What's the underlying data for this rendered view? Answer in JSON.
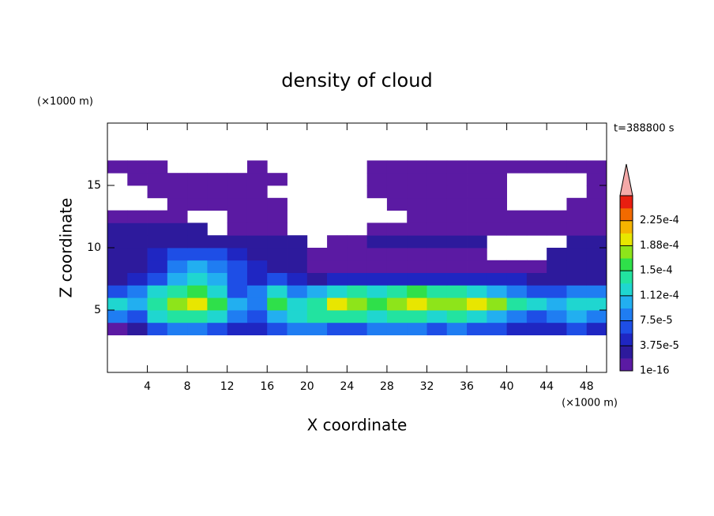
{
  "chart_data": {
    "type": "contour",
    "title": "density of cloud",
    "x_label": "X coordinate",
    "y_label": "Z coordinate",
    "x_unit": "(×1000 m)",
    "y_unit": "(×1000 m)",
    "time_label": "t=388800 s",
    "xlim": [
      0,
      50
    ],
    "ylim": [
      0,
      20
    ],
    "xticks": [
      4,
      8,
      12,
      16,
      20,
      24,
      28,
      32,
      36,
      40,
      44,
      48
    ],
    "yticks": [
      5,
      10,
      15
    ],
    "x": [
      1,
      3,
      5,
      7,
      9,
      11,
      13,
      15,
      17,
      19,
      21,
      23,
      25,
      27,
      29,
      31,
      33,
      35,
      37,
      39,
      41,
      43,
      45,
      47,
      49
    ],
    "y": [
      3.5,
      4.5,
      5.5,
      6.5,
      7.5,
      8.5,
      9.5,
      10.5,
      11.5,
      12.5,
      13.5,
      14.5,
      15.5,
      16.5
    ],
    "values": [
      [
        1e-05,
        2.5e-05,
        6.5e-05,
        8.5e-05,
        8.5e-05,
        6.5e-05,
        4.5e-05,
        4.5e-05,
        6.5e-05,
        8.5e-05,
        8.5e-05,
        6.5e-05,
        6.5e-05,
        8.5e-05,
        8.5e-05,
        8.5e-05,
        6.5e-05,
        8.5e-05,
        6.5e-05,
        6.5e-05,
        4.5e-05,
        4.5e-05,
        4.5e-05,
        6.5e-05,
        4.5e-05
      ],
      [
        8.5e-05,
        6.5e-05,
        0.00012,
        0.00014,
        0.00014,
        0.00012,
        8.5e-05,
        6.5e-05,
        0.0001,
        0.00012,
        0.00014,
        0.00014,
        0.00014,
        0.00012,
        0.00014,
        0.00014,
        0.00012,
        0.00014,
        0.00012,
        0.0001,
        8.5e-05,
        6.5e-05,
        8.5e-05,
        0.0001,
        8.5e-05
      ],
      [
        0.00012,
        0.0001,
        0.00014,
        0.00018,
        0.000195,
        0.00016,
        0.0001,
        8.5e-05,
        0.00016,
        0.00012,
        0.00014,
        0.000195,
        0.00018,
        0.00016,
        0.00018,
        0.000195,
        0.00018,
        0.00018,
        0.000195,
        0.00018,
        0.00014,
        0.00012,
        0.0001,
        0.00012,
        0.00012
      ],
      [
        6.5e-05,
        8.5e-05,
        0.00012,
        0.00014,
        0.00016,
        0.00012,
        6.5e-05,
        8.5e-05,
        0.00012,
        8.5e-05,
        0.0001,
        0.00012,
        0.00014,
        0.00012,
        0.00014,
        0.00016,
        0.00014,
        0.00014,
        0.00012,
        0.0001,
        8.5e-05,
        6.5e-05,
        6.5e-05,
        8.5e-05,
        8.5e-05
      ],
      [
        2.5e-05,
        4.5e-05,
        6.5e-05,
        0.0001,
        0.00012,
        0.0001,
        6.5e-05,
        4.5e-05,
        6.5e-05,
        4.5e-05,
        2.5e-05,
        4.5e-05,
        4.5e-05,
        4.5e-05,
        4.5e-05,
        4.5e-05,
        4.5e-05,
        4.5e-05,
        4.5e-05,
        4.5e-05,
        4.5e-05,
        2.5e-05,
        2.5e-05,
        2.5e-05,
        2.5e-05
      ],
      [
        2.5e-05,
        2.5e-05,
        4.5e-05,
        8.5e-05,
        0.0001,
        8.5e-05,
        6.5e-05,
        4.5e-05,
        2.5e-05,
        2.5e-05,
        1e-05,
        1e-05,
        1e-05,
        1e-05,
        1e-05,
        1e-05,
        1e-05,
        1e-05,
        1e-05,
        1e-05,
        1e-05,
        1e-05,
        2.5e-05,
        2.5e-05,
        2.5e-05
      ],
      [
        2.5e-05,
        2.5e-05,
        4.5e-05,
        6.5e-05,
        6.5e-05,
        6.5e-05,
        4.5e-05,
        2.5e-05,
        2.5e-05,
        2.5e-05,
        1e-05,
        1e-05,
        1e-05,
        1e-05,
        1e-05,
        1e-05,
        1e-05,
        1e-05,
        1e-05,
        null,
        null,
        null,
        2.5e-05,
        2.5e-05,
        2.5e-05
      ],
      [
        2.5e-05,
        2.5e-05,
        2.5e-05,
        2.5e-05,
        2.5e-05,
        2.5e-05,
        2.5e-05,
        2.5e-05,
        2.5e-05,
        2.5e-05,
        null,
        1e-05,
        1e-05,
        2.5e-05,
        2.5e-05,
        2.5e-05,
        2.5e-05,
        2.5e-05,
        2.5e-05,
        null,
        null,
        null,
        null,
        2.5e-05,
        2.5e-05
      ],
      [
        2.5e-05,
        2.5e-05,
        2.5e-05,
        2.5e-05,
        2.5e-05,
        null,
        1e-05,
        1e-05,
        1e-05,
        null,
        null,
        null,
        null,
        1e-05,
        1e-05,
        1e-05,
        1e-05,
        1e-05,
        1e-05,
        1e-05,
        1e-05,
        1e-05,
        1e-05,
        1e-05,
        1e-05
      ],
      [
        1e-05,
        1e-05,
        1e-05,
        1e-05,
        null,
        null,
        1e-05,
        1e-05,
        1e-05,
        null,
        null,
        null,
        null,
        null,
        null,
        1e-05,
        1e-05,
        1e-05,
        1e-05,
        1e-05,
        1e-05,
        1e-05,
        1e-05,
        1e-05,
        1e-05
      ],
      [
        null,
        null,
        null,
        1e-05,
        1e-05,
        1e-05,
        1e-05,
        1e-05,
        1e-05,
        null,
        null,
        null,
        null,
        null,
        1e-05,
        1e-05,
        1e-05,
        1e-05,
        1e-05,
        1e-05,
        null,
        null,
        null,
        1e-05,
        1e-05
      ],
      [
        null,
        null,
        1e-05,
        1e-05,
        1e-05,
        1e-05,
        1e-05,
        1e-05,
        null,
        null,
        null,
        null,
        null,
        1e-05,
        1e-05,
        1e-05,
        1e-05,
        1e-05,
        1e-05,
        1e-05,
        null,
        null,
        null,
        null,
        1e-05
      ],
      [
        null,
        1e-05,
        1e-05,
        1e-05,
        1e-05,
        1e-05,
        1e-05,
        1e-05,
        1e-05,
        null,
        null,
        null,
        null,
        1e-05,
        1e-05,
        1e-05,
        1e-05,
        1e-05,
        1e-05,
        1e-05,
        null,
        null,
        null,
        null,
        1e-05
      ],
      [
        1e-05,
        1e-05,
        1e-05,
        null,
        null,
        null,
        null,
        1e-05,
        null,
        null,
        null,
        null,
        null,
        1e-05,
        1e-05,
        1e-05,
        1e-05,
        1e-05,
        1e-05,
        1e-05,
        1e-05,
        1e-05,
        1e-05,
        1e-05,
        1e-05
      ]
    ],
    "levels": [
      1e-16,
      1.875e-05,
      3.75e-05,
      5.625e-05,
      7.5e-05,
      9.375e-05,
      0.0001125,
      0.00013125,
      0.00015,
      0.00016875,
      0.0001875,
      0.00020625,
      0.000225,
      0.00024375,
      0.0002625
    ],
    "colors": [
      "#5b1aa3",
      "#2d1a9c",
      "#1f26c2",
      "#1e4ee6",
      "#1f7df2",
      "#22aff0",
      "#1fd6d0",
      "#22e3a0",
      "#2fe04a",
      "#8ee41a",
      "#e8e600",
      "#f5b400",
      "#f26a00",
      "#e81e10"
    ],
    "extend_color": "#f4a9a8",
    "colorbar_ticks": [
      {
        "value": 1e-16,
        "label": "1e-16"
      },
      {
        "value": 3.75e-05,
        "label": "3.75e-5"
      },
      {
        "value": 7.5e-05,
        "label": "7.5e-5"
      },
      {
        "value": 0.0001125,
        "label": "1.12e-4"
      },
      {
        "value": 0.00015,
        "label": "1.5e-4"
      },
      {
        "value": 0.0001875,
        "label": "1.88e-4"
      },
      {
        "value": 0.000225,
        "label": "2.25e-4"
      }
    ]
  }
}
